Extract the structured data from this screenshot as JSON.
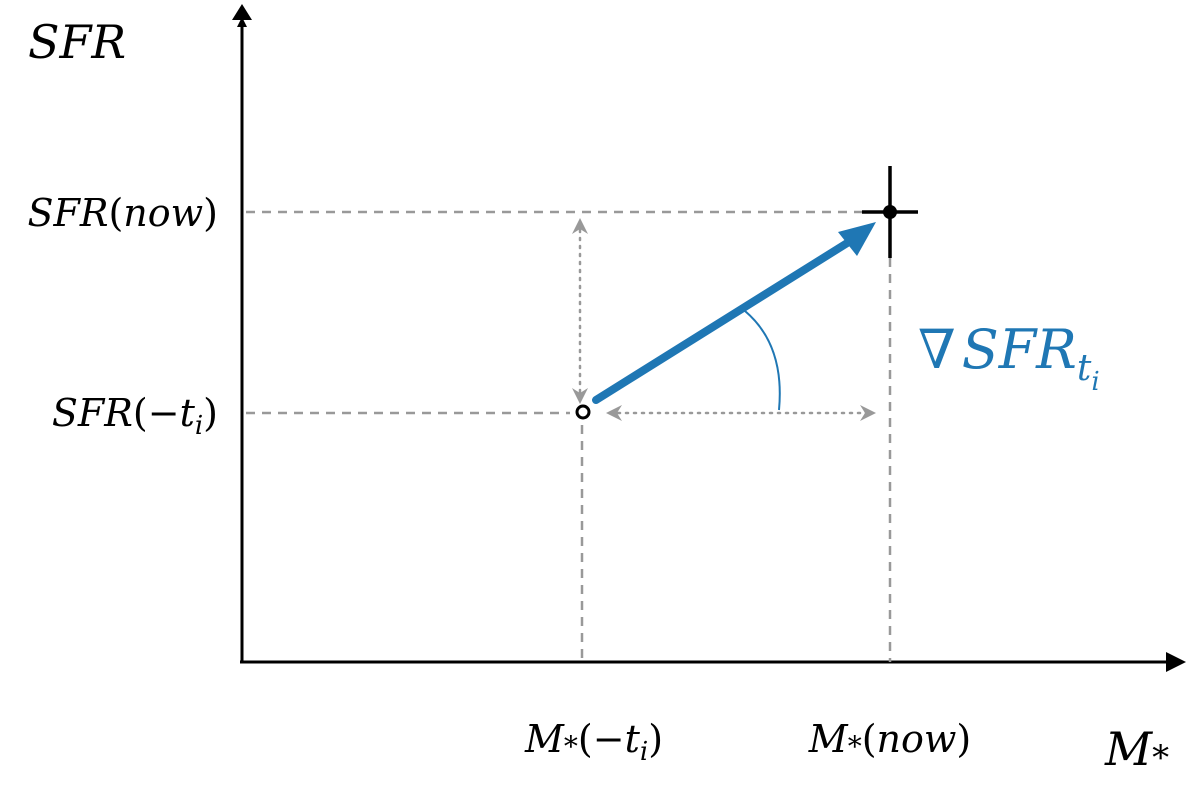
{
  "axes": {
    "y_label": "SFR",
    "x_label_main": "M",
    "x_label_sub": "*"
  },
  "y_ticks": {
    "now": {
      "main": "SFR",
      "paren_open": "(",
      "arg": "now",
      "paren_close": ")"
    },
    "past": {
      "main": "SFR",
      "paren_open": "(",
      "minus": "−",
      "arg": "t",
      "arg_sub": "i",
      "paren_close": ")"
    }
  },
  "x_ticks": {
    "past": {
      "main": "M",
      "sub": "*",
      "paren_open": "(",
      "minus": "−",
      "arg": "t",
      "arg_sub": "i",
      "paren_close": ")"
    },
    "now": {
      "main": "M",
      "sub": "*",
      "paren_open": "(",
      "arg": "now",
      "paren_close": ")"
    }
  },
  "gradient_label": {
    "nabla": "∇",
    "main": "SFR",
    "sub": "t",
    "subsub": "i"
  },
  "colors": {
    "axis": "#000000",
    "guide": "#999999",
    "gradient": "#1f77b4"
  }
}
